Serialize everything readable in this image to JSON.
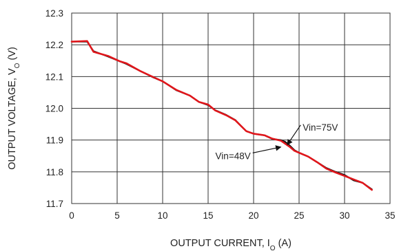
{
  "chart_data": {
    "type": "line",
    "title": "",
    "xlabel": {
      "main": "OUTPUT CURRENT, I",
      "sub": "O",
      "unit": " (A)"
    },
    "ylabel": {
      "main": "OUTPUT VOLTAGE, V",
      "sub": "O",
      "unit": " (V)"
    },
    "xlim": [
      0,
      35
    ],
    "ylim": [
      11.7,
      12.3
    ],
    "xticks": [
      "0",
      "5",
      "10",
      "15",
      "20",
      "25",
      "30",
      "35"
    ],
    "yticks": [
      "11.7",
      "11.8",
      "11.9",
      "12.0",
      "12.1",
      "12.2",
      "12.3"
    ],
    "grid": true,
    "series": [
      {
        "name": "Vin=75V",
        "color": "#111111",
        "x": [
          0,
          1.7,
          2.4,
          4,
          5.3,
          6,
          7.5,
          9,
          10,
          11.5,
          13,
          14,
          15,
          15.8,
          17,
          18,
          18.6,
          19.2,
          20,
          21.2,
          22,
          23,
          23.5,
          24,
          24.5,
          25,
          26,
          27,
          28,
          29,
          30,
          31,
          32,
          33
        ],
        "y": [
          12.21,
          12.21,
          12.18,
          12.163,
          12.148,
          12.14,
          12.118,
          12.097,
          12.085,
          12.057,
          12.04,
          12.02,
          12.01,
          11.994,
          11.979,
          11.963,
          11.945,
          11.928,
          11.92,
          11.915,
          11.904,
          11.9,
          11.894,
          11.882,
          11.868,
          11.86,
          11.848,
          11.83,
          11.812,
          11.8,
          11.79,
          11.773,
          11.765,
          11.745
        ]
      },
      {
        "name": "Vin=48V",
        "color": "#e0161b",
        "x": [
          0,
          1.7,
          2.4,
          4,
          5.3,
          6,
          7.5,
          9,
          10,
          11.5,
          13,
          14,
          15,
          15.8,
          17,
          18,
          18.6,
          19.2,
          20,
          21.2,
          22,
          23,
          23.5,
          24,
          24.5,
          25,
          26,
          27,
          28,
          29,
          30,
          31,
          32,
          33
        ],
        "y": [
          12.21,
          12.212,
          12.178,
          12.165,
          12.148,
          12.142,
          12.118,
          12.098,
          12.085,
          12.058,
          12.04,
          12.02,
          12.012,
          11.993,
          11.978,
          11.962,
          11.945,
          11.928,
          11.92,
          11.915,
          11.905,
          11.898,
          11.888,
          11.878,
          11.866,
          11.86,
          11.848,
          11.83,
          11.81,
          11.798,
          11.787,
          11.776,
          11.765,
          11.743
        ]
      }
    ],
    "annotations": [
      {
        "text": "Vin=75V",
        "x": 25.4,
        "y": 11.93,
        "arrow_to": [
          23.7,
          11.885
        ]
      },
      {
        "text": "Vin=48V",
        "x": 15.8,
        "y": 11.84,
        "arrow_to": [
          23.0,
          11.878
        ]
      }
    ]
  }
}
